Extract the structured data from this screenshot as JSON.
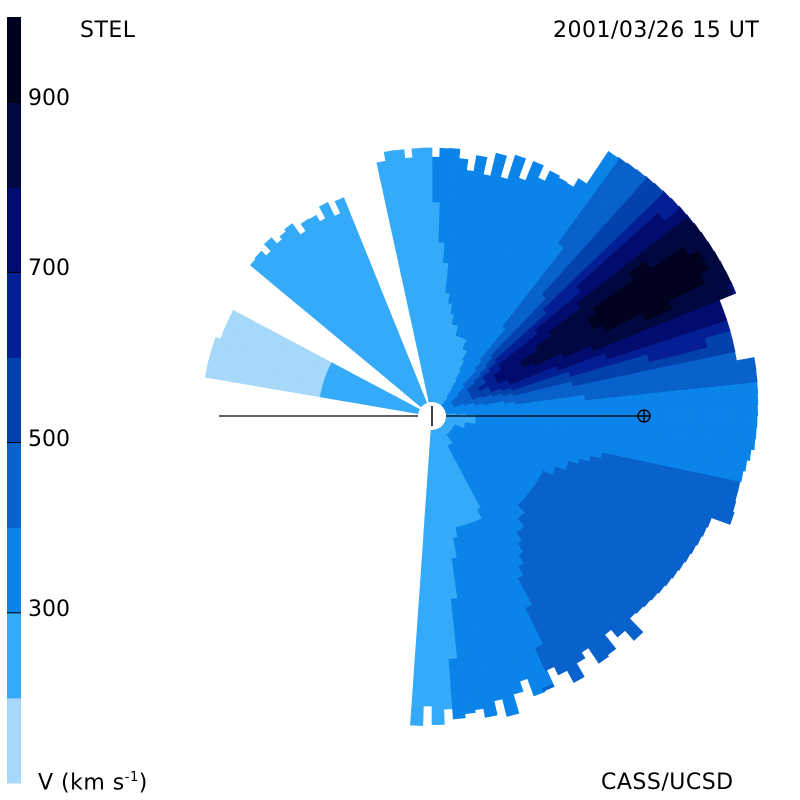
{
  "header": {
    "left_label": "STEL",
    "timestamp": "2001/03/26 15 UT"
  },
  "footer": {
    "colorbar_label": "V (km s",
    "colorbar_label_superscript": "-1",
    "colorbar_label_close": ")",
    "credit": "CASS/UCSD"
  },
  "chart_data": {
    "type": "heatmap",
    "title": "STEL",
    "subtitle": "2001/03/26 15 UT",
    "colorbar": {
      "label": "V (km s-1)",
      "ticks": [
        {
          "value": 300,
          "label": "300"
        },
        {
          "value": 500,
          "label": "500"
        },
        {
          "value": 700,
          "label": "700"
        },
        {
          "value": 900,
          "label": "900"
        }
      ],
      "levels": [
        {
          "from": 100,
          "to": 200,
          "color": "#a6d8fa"
        },
        {
          "from": 200,
          "to": 300,
          "color": "#35aaf8"
        },
        {
          "from": 300,
          "to": 400,
          "color": "#0b84ea"
        },
        {
          "from": 400,
          "to": 500,
          "color": "#0962cc"
        },
        {
          "from": 500,
          "to": 600,
          "color": "#0342ad"
        },
        {
          "from": 600,
          "to": 700,
          "color": "#041f93"
        },
        {
          "from": 700,
          "to": 800,
          "color": "#020b6e"
        },
        {
          "from": 800,
          "to": 900,
          "color": "#01083f"
        },
        {
          "from": 900,
          "to": 1000,
          "color": "#010220"
        }
      ]
    },
    "markers": [
      {
        "name": "Sun",
        "symbol": "circle"
      },
      {
        "name": "Earth",
        "symbol": "⊕"
      }
    ]
  }
}
